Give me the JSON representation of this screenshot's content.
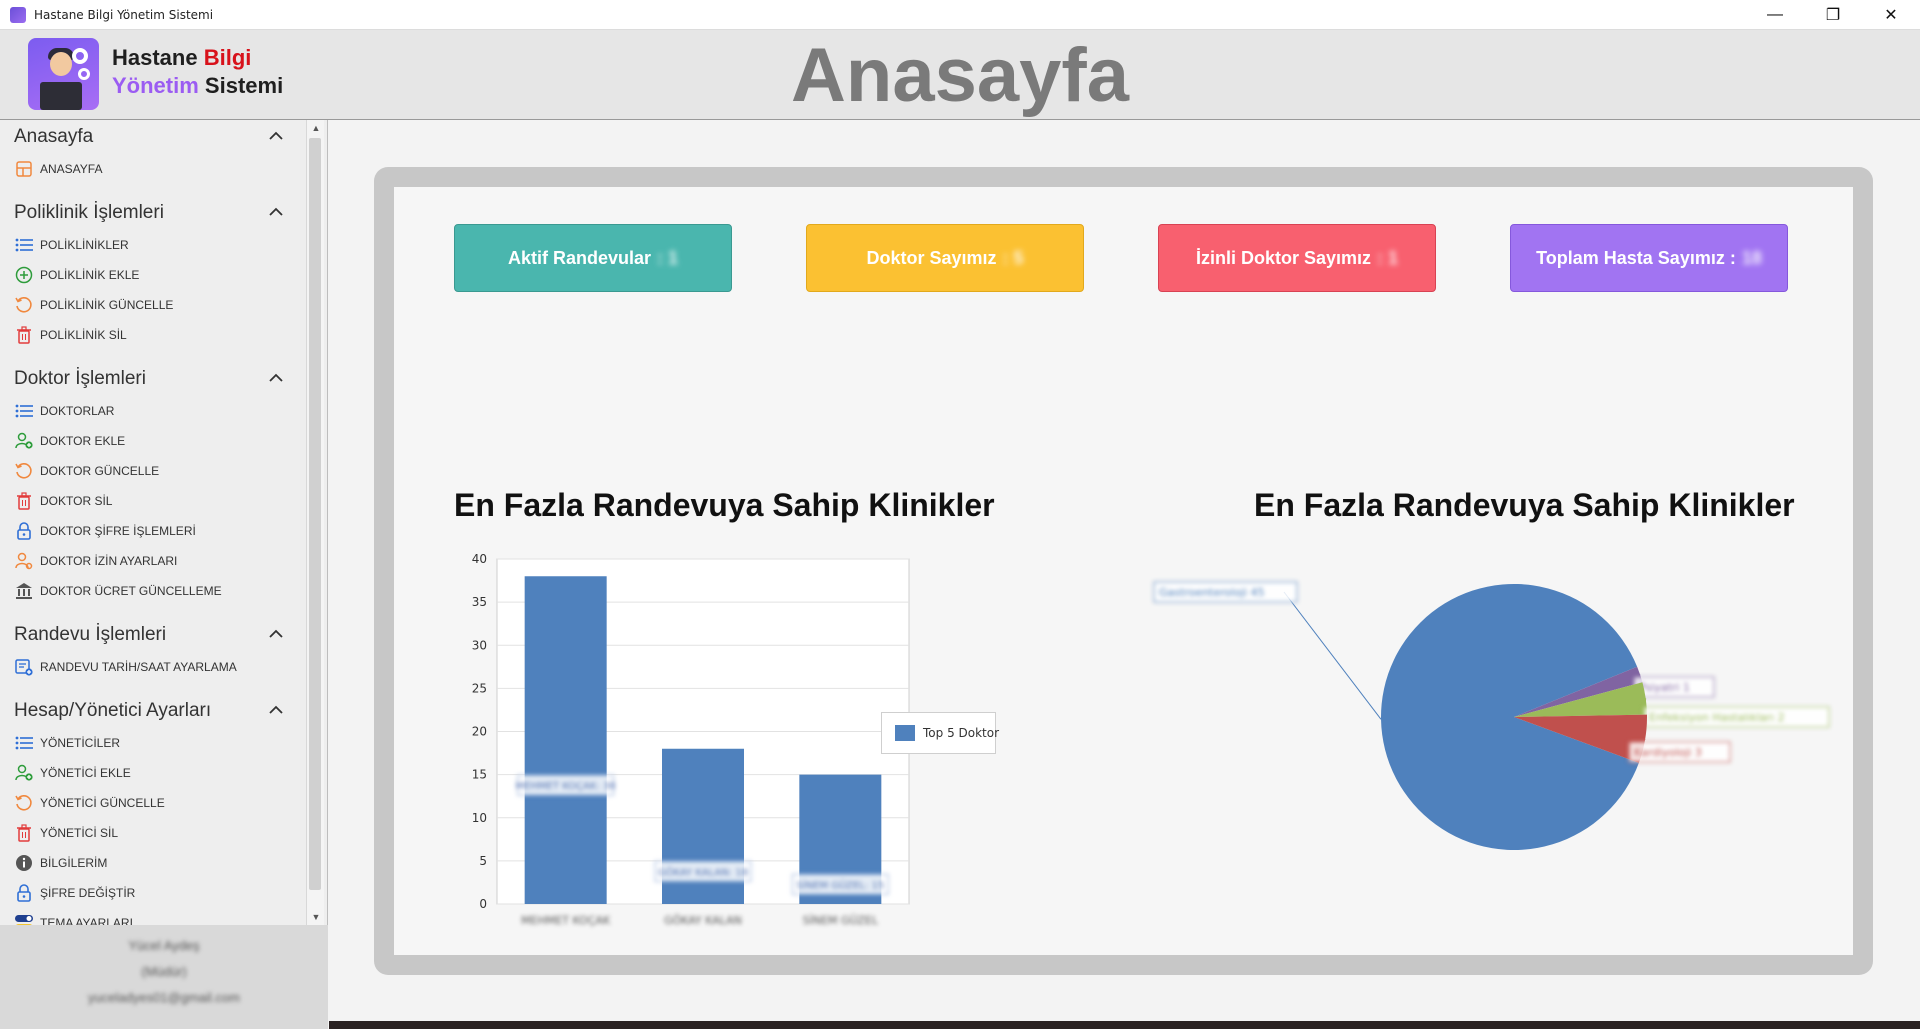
{
  "window": {
    "title": "Hastane Bilgi Yönetim Sistemi",
    "minimize": "—",
    "restore": "❐",
    "close": "✕"
  },
  "header": {
    "brand_line1_a": "Hastane",
    "brand_line1_b": "Bilgi",
    "brand_line2_a": "Yönetim",
    "brand_line2_b": "Sistemi",
    "page_title": "Anasayfa"
  },
  "sidebar": {
    "sections": [
      {
        "title": "Anasayfa",
        "items": [
          {
            "label": "ANASAYFA",
            "icon": "home-grid-icon"
          }
        ]
      },
      {
        "title": "Poliklinik İşlemleri",
        "items": [
          {
            "label": "POLİKLİNİKLER",
            "icon": "list-icon"
          },
          {
            "label": "POLİKLİNİK EKLE",
            "icon": "plus-circle-icon"
          },
          {
            "label": "POLİKLİNİK GÜNCELLE",
            "icon": "refresh-icon"
          },
          {
            "label": "POLİKLİNİK SİL",
            "icon": "trash-icon"
          }
        ]
      },
      {
        "title": "Doktor İşlemleri",
        "items": [
          {
            "label": "DOKTORLAR",
            "icon": "list-icon"
          },
          {
            "label": "DOKTOR EKLE",
            "icon": "user-add-icon"
          },
          {
            "label": "DOKTOR GÜNCELLE",
            "icon": "refresh-icon"
          },
          {
            "label": "DOKTOR SİL",
            "icon": "trash-icon"
          },
          {
            "label": "DOKTOR ŞİFRE İŞLEMLERİ",
            "icon": "lock-icon"
          },
          {
            "label": "DOKTOR İZİN AYARLARI",
            "icon": "user-settings-icon"
          },
          {
            "label": "DOKTOR ÜCRET GÜNCELLEME",
            "icon": "bank-icon"
          }
        ]
      },
      {
        "title": "Randevu İşlemleri",
        "items": [
          {
            "label": "RANDEVU TARİH/SAAT AYARLAMA",
            "icon": "calendar-add-icon"
          }
        ]
      },
      {
        "title": "Hesap/Yönetici Ayarları",
        "items": [
          {
            "label": "YÖNETİCİLER",
            "icon": "list-icon"
          },
          {
            "label": "YÖNETİCİ EKLE",
            "icon": "user-add-icon"
          },
          {
            "label": "YÖNETİCİ GÜNCELLE",
            "icon": "refresh-icon"
          },
          {
            "label": "YÖNETİCİ SİL",
            "icon": "trash-icon"
          },
          {
            "label": "BİLGİLERİM",
            "icon": "info-icon"
          },
          {
            "label": "ŞİFRE DEĞİŞTİR",
            "icon": "lock-icon"
          },
          {
            "label": "TEMA AYARLARI",
            "icon": "toggle-icon"
          }
        ]
      }
    ],
    "user": {
      "name": "Yücel Aydeş",
      "role": "(Müdür)",
      "email": "yuceladyes01@gmail.com"
    }
  },
  "stats": [
    {
      "label": "Aktif Randevular",
      "value": ": 1",
      "color": "#4ab6ae"
    },
    {
      "label": "Doktor Sayımız",
      "value": ": 5",
      "color": "#fbc132"
    },
    {
      "label": "İzinli Doktor Sayımız",
      "value": ": 1",
      "color": "#f8606f"
    },
    {
      "label": "Toplam Hasta Sayımız :",
      "value": "18",
      "color": "#a174f2"
    }
  ],
  "chart_data": [
    {
      "type": "bar",
      "title": "En Fazla Randevuya Sahip Klinikler",
      "categories": [
        "MEHMET KOÇAK",
        "GÖKAY KALAN",
        "SİNEM GÜZEL"
      ],
      "series": [
        {
          "name": "Top 5 Doktor",
          "values": [
            38,
            18,
            15
          ],
          "color": "#4f81bd"
        }
      ],
      "data_labels": [
        "MEHMET KOÇAK: 38",
        "GÖKAY KALAN: 18",
        "SİNEM GÜZEL: 15"
      ],
      "ylim": [
        0,
        40
      ],
      "yticks": [
        0,
        5,
        10,
        15,
        20,
        25,
        30,
        35,
        40
      ],
      "legend": "right"
    },
    {
      "type": "pie",
      "title": "En Fazla Randevuya Sahip Klinikler",
      "slices": [
        {
          "label": "Gastroenteroloji 45",
          "value": 45,
          "color": "#4f81bd"
        },
        {
          "label": "Psiyatri 1",
          "value": 1,
          "color": "#8064a2"
        },
        {
          "label": "Enfeksiyon Hastalıkları 2",
          "value": 2,
          "color": "#9bbb59"
        },
        {
          "label": "Kardiyoloji 3",
          "value": 3,
          "color": "#c0504d"
        }
      ]
    }
  ]
}
